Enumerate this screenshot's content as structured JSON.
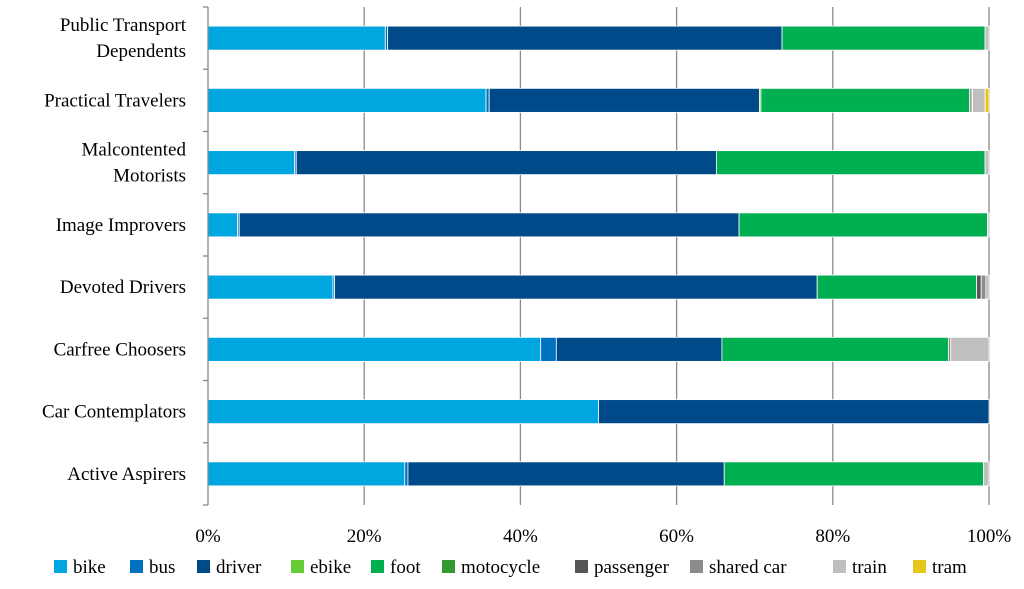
{
  "chart_data": {
    "type": "bar",
    "orientation": "horizontal",
    "stacked": true,
    "title": "",
    "xlabel": "",
    "ylabel": "",
    "xlim": [
      0,
      100
    ],
    "x_ticks": [
      "0%",
      "20%",
      "40%",
      "60%",
      "80%",
      "100%"
    ],
    "grid": "vertical",
    "legend_position": "bottom",
    "categories": [
      [
        "Public Transport",
        "Dependents"
      ],
      [
        "Practical Travelers"
      ],
      [
        "Malcontented",
        "Motorists"
      ],
      [
        "Image Improvers"
      ],
      [
        "Devoted Drivers"
      ],
      [
        "Carfree Choosers"
      ],
      [
        "Car Contemplators"
      ],
      [
        "Active Aspirers"
      ]
    ],
    "series": [
      {
        "name": "bike",
        "color": "#00a6e0",
        "values": [
          22.7,
          35.6,
          11.1,
          3.8,
          16.0,
          42.6,
          50.0,
          25.2
        ]
      },
      {
        "name": "bus",
        "color": "#0070c0",
        "values": [
          0.3,
          0.4,
          0.2,
          0.2,
          0.2,
          2.0,
          0.0,
          0.4
        ]
      },
      {
        "name": "driver",
        "color": "#004a8a",
        "values": [
          50.5,
          34.6,
          53.8,
          64.0,
          61.8,
          21.2,
          50.0,
          40.5
        ]
      },
      {
        "name": "ebike",
        "color": "#66cc33",
        "values": [
          0.0,
          0.2,
          0.0,
          0.0,
          0.0,
          0.0,
          0.0,
          0.0
        ]
      },
      {
        "name": "foot",
        "color": "#00b050",
        "values": [
          26.0,
          26.7,
          34.4,
          31.8,
          20.4,
          29.0,
          0.0,
          33.2
        ]
      },
      {
        "name": "motocycle",
        "color": "#339933",
        "values": [
          0.0,
          0.0,
          0.0,
          0.0,
          0.0,
          0.0,
          0.0,
          0.0
        ]
      },
      {
        "name": "passenger",
        "color": "#555555",
        "values": [
          0.0,
          0.2,
          0.0,
          0.0,
          0.6,
          0.0,
          0.0,
          0.0
        ]
      },
      {
        "name": "shared car",
        "color": "#8c8c8c",
        "values": [
          0.0,
          0.2,
          0.0,
          0.0,
          0.6,
          0.3,
          0.0,
          0.0
        ]
      },
      {
        "name": "train",
        "color": "#bfbfbf",
        "values": [
          0.5,
          1.6,
          0.5,
          0.2,
          0.4,
          4.9,
          0.0,
          0.7
        ]
      },
      {
        "name": "tram",
        "color": "#e6c619",
        "values": [
          0.0,
          0.5,
          0.0,
          0.0,
          0.0,
          0.0,
          0.0,
          0.0
        ]
      }
    ]
  }
}
